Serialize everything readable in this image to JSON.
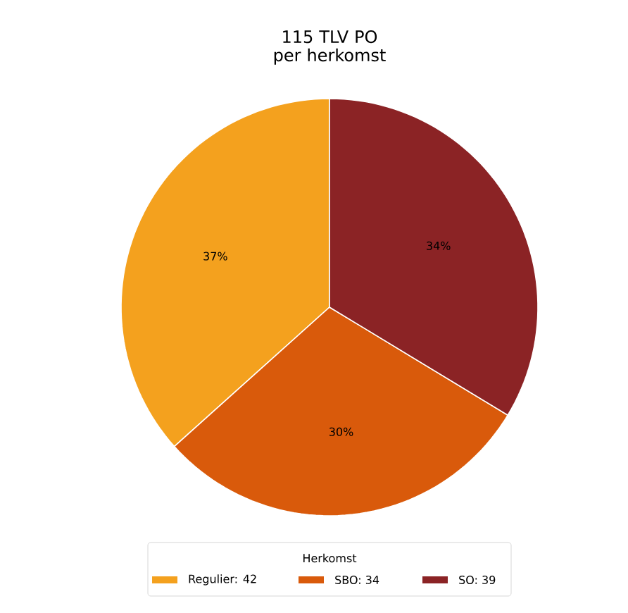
{
  "chart_data": {
    "type": "pie",
    "title": "115 TLV PO\nper herkomst",
    "categories": [
      "Regulier: 42",
      "SBO: 34",
      "SO: 39"
    ],
    "values": [
      37,
      30,
      34
    ],
    "colors": [
      "#f4a11e",
      "#d95a0b",
      "#8b2325"
    ],
    "value_labels": [
      "37%",
      "30%",
      "34%"
    ],
    "legend_title": "Herkomst",
    "legend": "bottom"
  }
}
